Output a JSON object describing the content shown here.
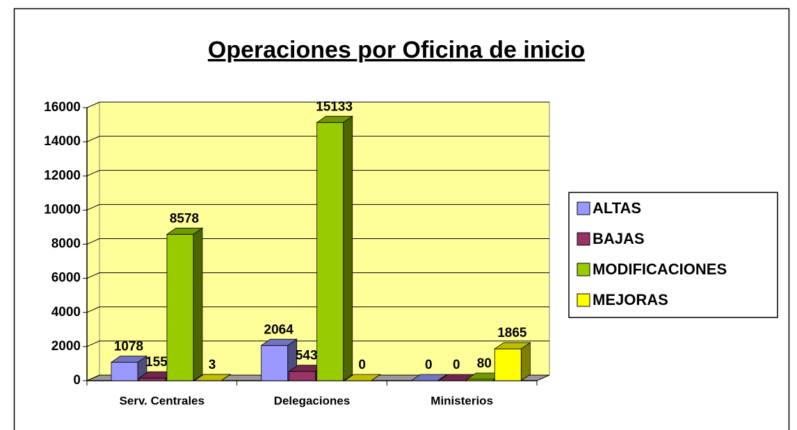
{
  "chart_data": {
    "type": "bar3d",
    "title": "Operaciones por Oficina de inicio",
    "categories": [
      "Serv. Centrales",
      "Delegaciones",
      "Ministerios"
    ],
    "series": [
      {
        "name": "ALTAS",
        "color": "#9999ff",
        "values": [
          1078,
          2064,
          0
        ]
      },
      {
        "name": "BAJAS",
        "color": "#993366",
        "values": [
          155,
          543,
          0
        ]
      },
      {
        "name": "MODIFICACIONES",
        "color": "#99cc00",
        "values": [
          8578,
          15133,
          80
        ]
      },
      {
        "name": "MEJORAS",
        "color": "#ffff00",
        "values": [
          3,
          0,
          1865
        ]
      }
    ],
    "ylim": [
      0,
      16000
    ],
    "yticks": [
      0,
      2000,
      4000,
      6000,
      8000,
      10000,
      12000,
      14000,
      16000
    ],
    "grid": true,
    "legend": "right"
  }
}
